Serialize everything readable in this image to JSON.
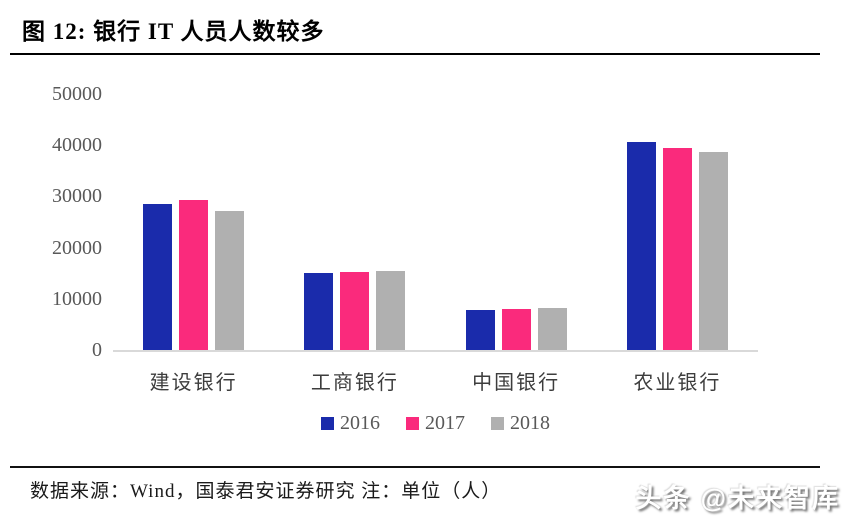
{
  "figure": {
    "title": "图 12: 银行 IT 人员人数较多",
    "source_note": "数据来源：Wind，国泰君安证券研究 注：单位（人）",
    "watermark": "头条 @未来智库"
  },
  "chart_data": {
    "type": "bar",
    "title": "银行 IT 人员人数较多",
    "unit_note": "单位（人）",
    "categories": [
      "建设银行",
      "工商银行",
      "中国银行",
      "农业银行"
    ],
    "series": [
      {
        "name": "2016",
        "color": "#1A2BAB",
        "values": [
          28500,
          15000,
          7900,
          40600
        ]
      },
      {
        "name": "2017",
        "color": "#FA2A7C",
        "values": [
          29300,
          15200,
          8000,
          39400
        ]
      },
      {
        "name": "2018",
        "color": "#B0B0B0",
        "values": [
          27200,
          15500,
          8200,
          38600
        ]
      }
    ],
    "ylim": [
      0,
      50000
    ],
    "ytick_labels": [
      "50000",
      "40000",
      "30000",
      "20000",
      "10000",
      "0"
    ],
    "legend_position": "bottom",
    "grid": false,
    "axis_color": "#D9D9D9"
  }
}
